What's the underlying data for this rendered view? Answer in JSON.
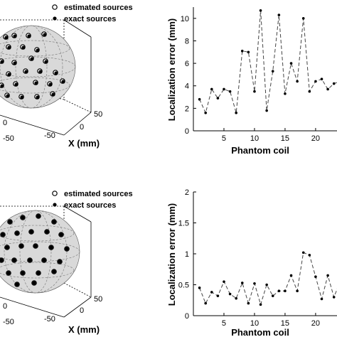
{
  "colors": {
    "ink": "#000000",
    "sphere": "#d9d9d9",
    "dash": "#444444"
  },
  "top": {
    "sphere": {
      "legend": {
        "estimated": "estimated sources",
        "exact": "exact sources"
      },
      "xlabel": "X (mm)",
      "x_ticks": [
        "0",
        "50",
        "-50",
        "-50",
        "0"
      ],
      "sources_est": [
        [
          8,
          52
        ],
        [
          20,
          50
        ],
        [
          40,
          50
        ],
        [
          62,
          48
        ],
        [
          12,
          66
        ],
        [
          32,
          66
        ],
        [
          52,
          70
        ],
        [
          2,
          86
        ],
        [
          20,
          88
        ],
        [
          44,
          82
        ],
        [
          64,
          86
        ],
        [
          12,
          104
        ],
        [
          36,
          100
        ],
        [
          56,
          100
        ],
        [
          78,
          102
        ],
        [
          2,
          120
        ],
        [
          22,
          118
        ],
        [
          50,
          116
        ],
        [
          70,
          118
        ],
        [
          10,
          134
        ],
        [
          30,
          136
        ],
        [
          52,
          136
        ],
        [
          74,
          132
        ],
        [
          88,
          114
        ]
      ],
      "sources_exact": [
        [
          9,
          53
        ],
        [
          21,
          51
        ],
        [
          41,
          51
        ],
        [
          63,
          49
        ],
        [
          13,
          67
        ],
        [
          33,
          67
        ],
        [
          53,
          71
        ],
        [
          3,
          87
        ],
        [
          21,
          89
        ],
        [
          45,
          83
        ],
        [
          65,
          87
        ],
        [
          13,
          105
        ],
        [
          37,
          101
        ],
        [
          57,
          101
        ],
        [
          79,
          103
        ],
        [
          3,
          121
        ],
        [
          23,
          119
        ],
        [
          51,
          117
        ],
        [
          71,
          119
        ],
        [
          11,
          135
        ],
        [
          31,
          137
        ],
        [
          53,
          137
        ],
        [
          75,
          133
        ],
        [
          89,
          115
        ]
      ]
    },
    "error_chart": {
      "xlabel": "Phantom coil",
      "ylabel": "Localization error (mm)",
      "y_ticks": [
        "0",
        "2",
        "4",
        "6",
        "8",
        "10"
      ],
      "x_ticks": [
        "5",
        "10",
        "15",
        "20"
      ]
    }
  },
  "bottom": {
    "sphere": {
      "legend": {
        "estimated": "estimated sources",
        "exact": "exact sources"
      },
      "xlabel": "X (mm)",
      "x_ticks": [
        "0",
        "50",
        "-50",
        "-50",
        "0"
      ],
      "sources_est": [
        [
          14,
          312
        ],
        [
          32,
          306
        ],
        [
          54,
          304
        ],
        [
          76,
          312
        ],
        [
          4,
          330
        ],
        [
          24,
          328
        ],
        [
          44,
          326
        ],
        [
          66,
          326
        ],
        [
          86,
          330
        ],
        [
          10,
          348
        ],
        [
          30,
          346
        ],
        [
          50,
          346
        ],
        [
          72,
          348
        ],
        [
          94,
          350
        ],
        [
          2,
          366
        ],
        [
          20,
          366
        ],
        [
          42,
          366
        ],
        [
          62,
          366
        ],
        [
          84,
          368
        ],
        [
          12,
          384
        ],
        [
          32,
          384
        ],
        [
          54,
          384
        ],
        [
          76,
          382
        ],
        [
          24,
          400
        ],
        [
          48,
          398
        ]
      ],
      "sources_exact": [
        [
          14,
          312
        ],
        [
          32,
          306
        ],
        [
          54,
          304
        ],
        [
          76,
          312
        ],
        [
          4,
          330
        ],
        [
          24,
          328
        ],
        [
          44,
          326
        ],
        [
          66,
          326
        ],
        [
          86,
          330
        ],
        [
          10,
          348
        ],
        [
          30,
          346
        ],
        [
          50,
          346
        ],
        [
          72,
          348
        ],
        [
          94,
          350
        ],
        [
          2,
          366
        ],
        [
          20,
          366
        ],
        [
          42,
          366
        ],
        [
          62,
          366
        ],
        [
          84,
          368
        ],
        [
          12,
          384
        ],
        [
          32,
          384
        ],
        [
          54,
          384
        ],
        [
          76,
          382
        ],
        [
          24,
          400
        ],
        [
          48,
          398
        ]
      ]
    },
    "error_chart": {
      "xlabel": "Phantom coil",
      "ylabel": "Localization error (mm)",
      "y_ticks": [
        "0",
        "0.5",
        "1",
        "1.5",
        "2"
      ],
      "x_ticks": [
        "5",
        "10",
        "15",
        "20"
      ]
    }
  },
  "chart_data": [
    {
      "type": "line",
      "ylabel": "Localization error (mm)",
      "xlabel": "Phantom coil",
      "xlim": [
        0,
        23.5
      ],
      "ylim": [
        0,
        11
      ],
      "x": [
        1,
        2,
        3,
        4,
        5,
        6,
        7,
        8,
        9,
        10,
        11,
        12,
        13,
        14,
        15,
        16,
        17,
        18,
        19,
        20,
        21,
        22,
        23,
        24
      ],
      "series": [
        {
          "values": [
            2.8,
            1.6,
            3.7,
            2.9,
            3.7,
            3.5,
            1.6,
            7.1,
            7.0,
            3.5,
            10.7,
            1.8,
            5.3,
            10.3,
            3.3,
            6.0,
            4.4,
            10.0,
            3.5,
            4.4,
            4.6,
            3.7,
            4.2,
            4.4
          ]
        }
      ]
    },
    {
      "type": "line",
      "ylabel": "Localization error (mm)",
      "xlabel": "Phantom coil",
      "xlim": [
        0,
        23.5
      ],
      "ylim": [
        0,
        2
      ],
      "x": [
        1,
        2,
        3,
        4,
        5,
        6,
        7,
        8,
        9,
        10,
        11,
        12,
        13,
        14,
        15,
        16,
        17,
        18,
        19,
        20,
        21,
        22,
        23,
        24
      ],
      "series": [
        {
          "values": [
            0.45,
            0.2,
            0.38,
            0.32,
            0.55,
            0.35,
            0.28,
            0.53,
            0.2,
            0.52,
            0.18,
            0.5,
            0.32,
            0.4,
            0.4,
            0.65,
            0.4,
            1.02,
            0.98,
            0.63,
            0.27,
            0.65,
            0.3,
            0.55
          ]
        }
      ]
    }
  ]
}
